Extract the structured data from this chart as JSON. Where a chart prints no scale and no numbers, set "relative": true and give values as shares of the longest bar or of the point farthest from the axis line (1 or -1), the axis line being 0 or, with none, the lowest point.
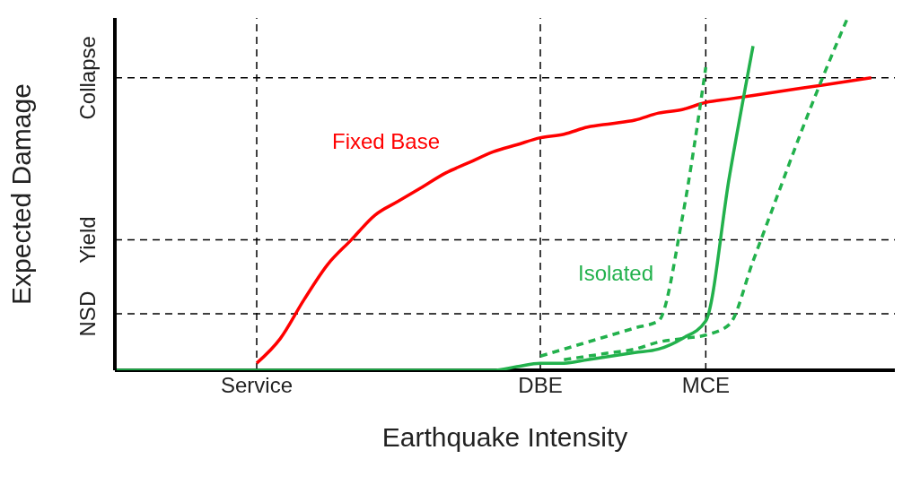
{
  "chart_data": {
    "type": "line",
    "relative": true,
    "xlabel": "Earthquake Intensity",
    "ylabel": "Expected Damage",
    "categories": [
      null,
      null,
      null,
      null,
      null,
      null,
      "Service",
      null,
      null,
      null,
      null,
      null,
      null,
      null,
      null,
      null,
      null,
      null,
      "DBE",
      null,
      null,
      null,
      null,
      null,
      null,
      "MCE",
      null,
      null,
      null,
      null,
      null,
      null,
      null,
      null
    ],
    "marker": "none",
    "series": [
      {
        "color": "#ff0000",
        "line_style": "solid",
        "values": [
          null,
          null,
          null,
          null,
          null,
          null,
          0.02,
          0.09,
          0.2,
          0.3,
          0.37,
          0.44,
          0.48,
          0.52,
          0.56,
          0.59,
          0.62,
          0.64,
          0.66,
          0.67,
          0.69,
          0.7,
          0.71,
          0.73,
          0.74,
          0.76,
          0.77,
          0.78,
          0.79,
          0.8,
          0.81,
          0.82,
          0.83,
          null
        ]
      },
      {
        "color": "#22b14c",
        "line_style": "dashed",
        "values": [
          null,
          null,
          null,
          null,
          null,
          null,
          null,
          null,
          null,
          null,
          null,
          null,
          null,
          null,
          null,
          null,
          null,
          null,
          0.04,
          0.06,
          0.08,
          0.1,
          0.12,
          0.14,
          0.43,
          0.86,
          null,
          null,
          null,
          null,
          null,
          null,
          null,
          null
        ]
      },
      {
        "color": "#22b14c",
        "line_style": "dashed",
        "values": [
          null,
          null,
          null,
          null,
          null,
          null,
          null,
          null,
          null,
          null,
          null,
          null,
          null,
          null,
          null,
          null,
          null,
          null,
          null,
          0.03,
          0.04,
          0.05,
          0.06,
          0.08,
          0.09,
          0.1,
          0.13,
          0.31,
          0.49,
          0.67,
          0.84,
          1,
          null,
          null
        ]
      },
      {
        "color": "#22b14c",
        "line_style": "solid",
        "values": [
          0,
          0,
          0,
          0,
          0,
          0,
          0,
          0,
          0,
          0,
          0,
          0,
          0,
          0,
          0,
          0,
          0,
          0.01,
          0.02,
          0.02,
          0.03,
          0.04,
          0.05,
          0.06,
          0.09,
          0.14,
          0.55,
          0.92,
          null,
          null,
          null,
          null,
          null,
          null
        ]
      }
    ],
    "ref_lines": [
      {
        "axis": "x",
        "value": "Service",
        "color": "#000000",
        "line_style": "dashed"
      },
      {
        "axis": "x",
        "value": "DBE",
        "color": "#000000",
        "line_style": "dashed"
      },
      {
        "axis": "x",
        "value": "MCE",
        "color": "#000000",
        "line_style": "dashed"
      },
      {
        "axis": "y",
        "value": 0.16,
        "label": "NSD",
        "color": "#000000",
        "line_style": "dashed"
      },
      {
        "axis": "y",
        "value": 0.37,
        "label": "Yield",
        "color": "#000000",
        "line_style": "dashed"
      },
      {
        "axis": "y",
        "value": 0.83,
        "label": "Collapse",
        "color": "#000000",
        "line_style": "dashed"
      }
    ],
    "annotations": [
      "Fixed Base",
      "Isolated"
    ]
  }
}
